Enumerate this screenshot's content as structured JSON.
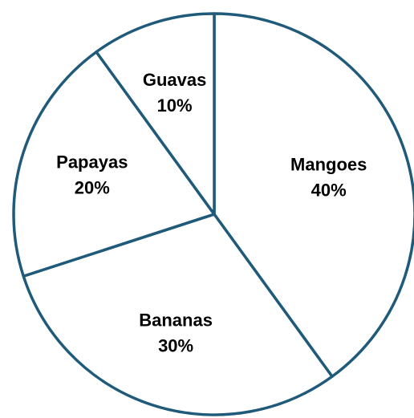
{
  "chart_data": {
    "type": "pie",
    "slices": [
      {
        "label": "Mangoes",
        "value": 40,
        "value_label": "40%"
      },
      {
        "label": "Bananas",
        "value": 30,
        "value_label": "30%"
      },
      {
        "label": "Papayas",
        "value": 20,
        "value_label": "20%"
      },
      {
        "label": "Guavas",
        "value": 10,
        "value_label": "10%"
      }
    ],
    "colors": {
      "fill": "#ffffff",
      "stroke": "#1f5a7a"
    },
    "start": "12 o'clock",
    "direction": "clockwise",
    "legend": "none"
  }
}
